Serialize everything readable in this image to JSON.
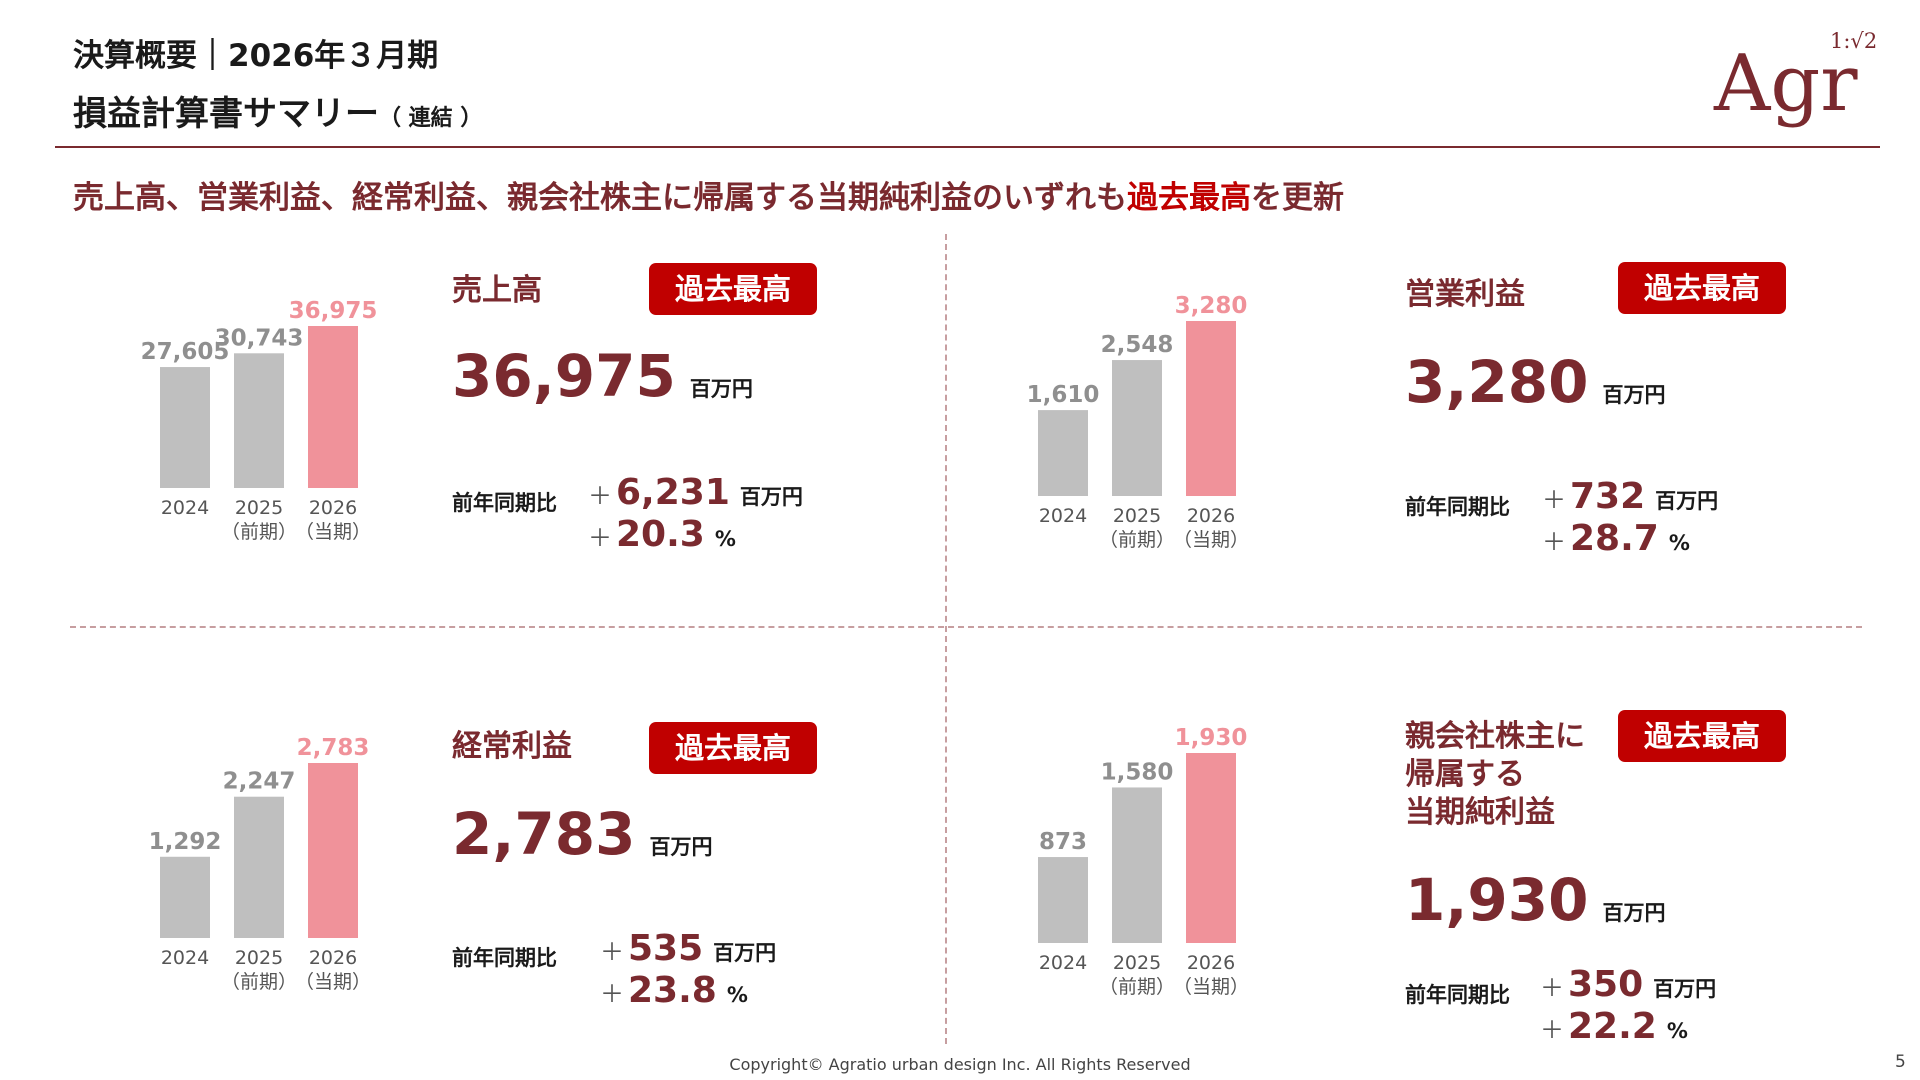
{
  "header": {
    "line1": "決算概要｜2026年３月期",
    "title": "損益計算書サマリー",
    "title_suffix": "（ 連結 ）",
    "logo_text": "Agr",
    "logo_ratio": "1:√2"
  },
  "headline": {
    "text_before": "売上高、営業利益、経常利益、親会社株主に帰属する当期純利益のいずれも",
    "highlight": "過去最高",
    "text_after": "を更新"
  },
  "colors": {
    "accent": "#7a2a2f",
    "badge": "#c00000",
    "bar_past": "#bfbfbf",
    "bar_current": "#f0929a"
  },
  "panels": [
    {
      "title": "売上高",
      "badge": "過去最高",
      "value": "36,975",
      "unit": "百万円",
      "yoy_label": "前年同期比",
      "yoy_sign": "＋",
      "yoy_amount": "6,231",
      "yoy_amount_unit": "百万円",
      "yoy_pct": "20.3",
      "yoy_pct_unit": "%"
    },
    {
      "title": "営業利益",
      "badge": "過去最高",
      "value": "3,280",
      "unit": "百万円",
      "yoy_label": "前年同期比",
      "yoy_sign": "＋",
      "yoy_amount": "732",
      "yoy_amount_unit": "百万円",
      "yoy_pct": "28.7",
      "yoy_pct_unit": "%"
    },
    {
      "title": "経常利益",
      "badge": "過去最高",
      "value": "2,783",
      "unit": "百万円",
      "yoy_label": "前年同期比",
      "yoy_sign": "＋",
      "yoy_amount": "535",
      "yoy_amount_unit": "百万円",
      "yoy_pct": "23.8",
      "yoy_pct_unit": "%"
    },
    {
      "title": "親会社株主に\n帰属する\n当期純利益",
      "badge": "過去最高",
      "value": "1,930",
      "unit": "百万円",
      "yoy_label": "前年同期比",
      "yoy_sign": "＋",
      "yoy_amount": "350",
      "yoy_amount_unit": "百万円",
      "yoy_pct": "22.2",
      "yoy_pct_unit": "%"
    }
  ],
  "chart_data": [
    {
      "type": "bar",
      "categories": [
        "2024",
        "2025\n（前期）",
        "2026\n（当期）"
      ],
      "values": [
        27605,
        30743,
        36975
      ],
      "value_labels": [
        "27,605",
        "30,743",
        "36,975"
      ]
    },
    {
      "type": "bar",
      "categories": [
        "2024",
        "2025\n（前期）",
        "2026\n（当期）"
      ],
      "values": [
        1610,
        2548,
        3280
      ],
      "value_labels": [
        "1,610",
        "2,548",
        "3,280"
      ]
    },
    {
      "type": "bar",
      "categories": [
        "2024",
        "2025\n（前期）",
        "2026\n（当期）"
      ],
      "values": [
        1292,
        2247,
        2783
      ],
      "value_labels": [
        "1,292",
        "2,247",
        "2,783"
      ]
    },
    {
      "type": "bar",
      "categories": [
        "2024",
        "2025\n（前期）",
        "2026\n（当期）"
      ],
      "values": [
        873,
        1580,
        1930
      ],
      "value_labels": [
        "873",
        "1,580",
        "1,930"
      ]
    }
  ],
  "footer": {
    "copyright": "Copyright© Agratio urban design Inc. All Rights Reserved",
    "page": "5"
  }
}
